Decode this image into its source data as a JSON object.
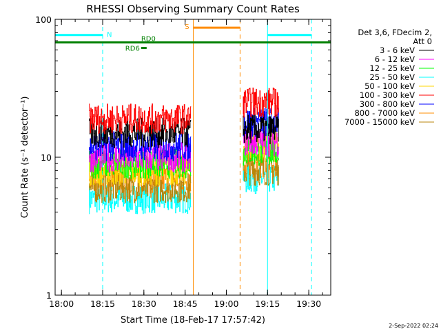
{
  "chart_data": {
    "type": "line",
    "title": "RHESSI Observing Summary Count Rates",
    "xlabel": "Start Time (18-Feb-17 17:57:42)",
    "ylabel": "Count Rate (s⁻¹ detector⁻¹)",
    "x_start": "17:57:42",
    "xlim": [
      "17:57:42",
      "19:38:00"
    ],
    "ylim": [
      1,
      100
    ],
    "yscale": "log",
    "x_ticks": [
      "18:00",
      "18:15",
      "18:30",
      "18:45",
      "19:00",
      "19:15",
      "19:30"
    ],
    "y_ticks": [
      "1",
      "10",
      "100"
    ],
    "legend": {
      "placement": "outside-right",
      "header": [
        "Det 3,6, FDecim 2,",
        "Att 0"
      ],
      "entries": [
        {
          "name": "3 - 6 keV",
          "color": "#000000"
        },
        {
          "name": "6 - 12 keV",
          "color": "#ff00ff"
        },
        {
          "name": "12 - 25 keV",
          "color": "#00ff00"
        },
        {
          "name": "25 - 50 keV",
          "color": "#00ffff"
        },
        {
          "name": "50 - 100 keV",
          "color": "#ffd700"
        },
        {
          "name": "100 - 300 keV",
          "color": "#ff0000"
        },
        {
          "name": "300 - 800 keV",
          "color": "#0000ff"
        },
        {
          "name": "800 - 7000 keV",
          "color": "#ff8c00"
        },
        {
          "name": "7000 - 15000 keV",
          "color": "#b8860b"
        }
      ]
    },
    "series_windows": [
      {
        "start": "18:10",
        "end": "18:47"
      },
      {
        "start": "19:06",
        "end": "19:19"
      }
    ],
    "series": [
      {
        "name": "3 - 6 keV",
        "color": "#000000",
        "levels": [
          15,
          16
        ]
      },
      {
        "name": "6 - 12 keV",
        "color": "#ff00ff",
        "levels": [
          10,
          13
        ]
      },
      {
        "name": "12 - 25 keV",
        "color": "#00ff00",
        "levels": [
          9,
          11
        ]
      },
      {
        "name": "25 - 50 keV",
        "color": "#00ffff",
        "levels": [
          5,
          7
        ]
      },
      {
        "name": "50 - 100 keV",
        "color": "#ffd700",
        "levels": [
          8,
          12
        ]
      },
      {
        "name": "100 - 300 keV",
        "color": "#ff0000",
        "levels": [
          19,
          25
        ]
      },
      {
        "name": "300 - 800 keV",
        "color": "#0000ff",
        "levels": [
          12,
          18
        ]
      },
      {
        "name": "800 - 7000 keV",
        "color": "#ff8c00",
        "levels": [
          7,
          9
        ]
      },
      {
        "name": "7000 - 15000 keV",
        "color": "#b8860b",
        "levels": [
          6,
          8
        ]
      }
    ],
    "flag_bars": [
      {
        "label": "N",
        "color": "#00ffff",
        "y": 77,
        "ranges": [
          [
            "17:57:42",
            "18:15"
          ],
          [
            "19:15",
            "19:31"
          ]
        ]
      },
      {
        "label": "S",
        "color": "#ff8c00",
        "y": 87,
        "ranges": [
          [
            "18:48",
            "19:05"
          ]
        ]
      },
      {
        "label": "RD0",
        "color": "#008000",
        "y": 68,
        "ranges": [
          [
            "17:57:42",
            "19:38"
          ]
        ]
      },
      {
        "label": "RD6",
        "color": "#008000",
        "y": 62,
        "ranges": [
          [
            "18:29",
            "18:31"
          ]
        ]
      }
    ],
    "vertical_lines": [
      {
        "time": "17:57:42",
        "color": "#00ffff",
        "style": "solid"
      },
      {
        "time": "18:15",
        "color": "#00ffff",
        "style": "dashed"
      },
      {
        "time": "18:48",
        "color": "#ff8c00",
        "style": "solid"
      },
      {
        "time": "19:05",
        "color": "#ff8c00",
        "style": "dashed"
      },
      {
        "time": "19:15",
        "color": "#00ffff",
        "style": "solid"
      },
      {
        "time": "19:31",
        "color": "#00ffff",
        "style": "dashed"
      }
    ],
    "footer_date": "2-Sep-2022 02:24"
  }
}
